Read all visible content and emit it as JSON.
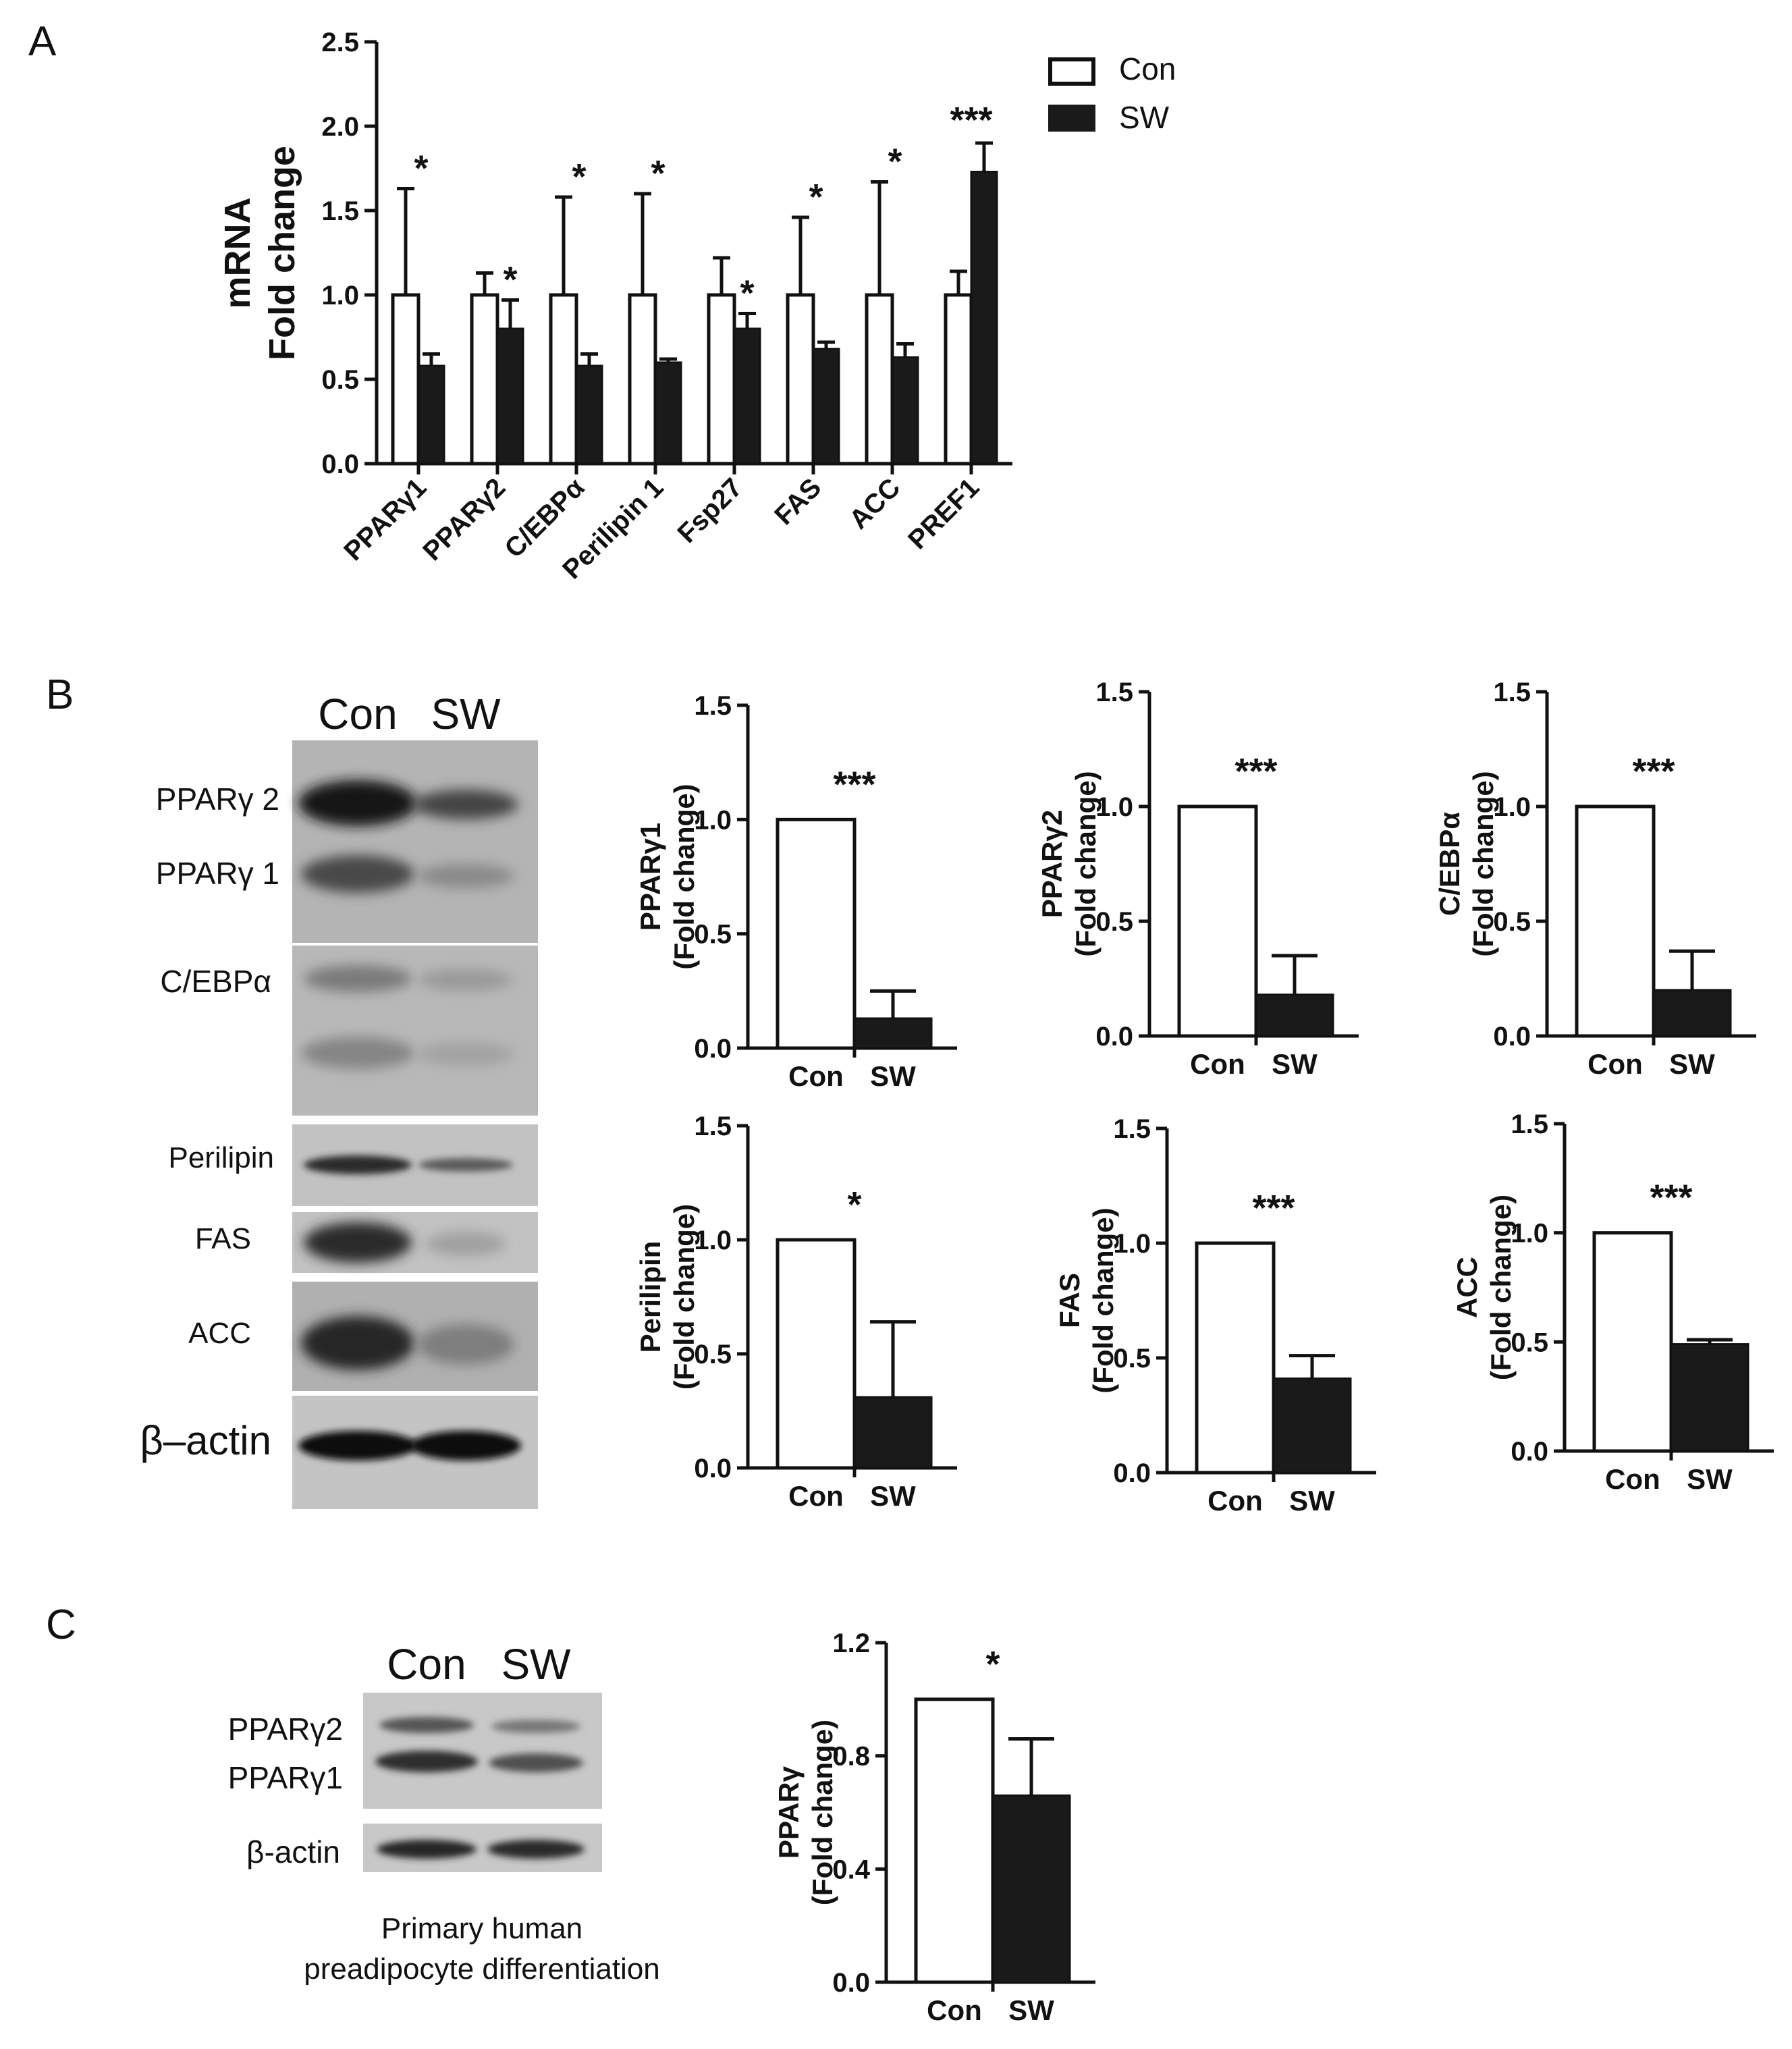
{
  "panel_labels": [
    "A",
    "B",
    "C"
  ],
  "colors": {
    "con": "#ffffff",
    "sw": "#1a1a1a",
    "axis": "#111111"
  },
  "chart_data": [
    {
      "id": "A",
      "type": "bar",
      "ylabel_lines": [
        "mRNA",
        "Fold change"
      ],
      "ylim": [
        0,
        2.5
      ],
      "yticks": [
        "0.0",
        "0.5",
        "1.0",
        "1.5",
        "2.0",
        "2.5"
      ],
      "categories": [
        "PPARγ1",
        "PPARγ2",
        "C/EBPα",
        "Perilipin 1",
        "Fsp27",
        "FAS",
        "ACC",
        "PREF1"
      ],
      "series": [
        {
          "name": "Con",
          "values": [
            1.0,
            1.0,
            1.0,
            1.0,
            1.0,
            1.0,
            1.0,
            1.0
          ],
          "errors": [
            0.63,
            0.13,
            0.58,
            0.6,
            0.22,
            0.46,
            0.67,
            0.14
          ]
        },
        {
          "name": "SW",
          "values": [
            0.58,
            0.8,
            0.58,
            0.6,
            0.8,
            0.68,
            0.63,
            1.73
          ],
          "errors": [
            0.07,
            0.17,
            0.07,
            0.02,
            0.09,
            0.04,
            0.08,
            0.17
          ]
        }
      ],
      "significance": [
        "*",
        "*",
        "*",
        "*",
        "*",
        "*",
        "*",
        "***"
      ],
      "legend": [
        "Con",
        "SW"
      ]
    },
    {
      "id": "B1",
      "type": "bar",
      "ylabel_lines": [
        "PPARγ1",
        "(Fold change)"
      ],
      "ylim": [
        0,
        1.5
      ],
      "yticks": [
        "0.0",
        "0.5",
        "1.0",
        "1.5"
      ],
      "categories": [
        "Con",
        "SW"
      ],
      "values": [
        1.0,
        0.13
      ],
      "errors": [
        0,
        0.12
      ],
      "significance": "***"
    },
    {
      "id": "B2",
      "type": "bar",
      "ylabel_lines": [
        "PPARγ2",
        "(Fold change)"
      ],
      "ylim": [
        0,
        1.5
      ],
      "yticks": [
        "0.0",
        "0.5",
        "1.0",
        "1.5"
      ],
      "categories": [
        "Con",
        "SW"
      ],
      "values": [
        1.0,
        0.18
      ],
      "errors": [
        0,
        0.17
      ],
      "significance": "***"
    },
    {
      "id": "B3",
      "type": "bar",
      "ylabel_lines": [
        "C/EBPα",
        "(Fold change)"
      ],
      "ylim": [
        0,
        1.5
      ],
      "yticks": [
        "0.0",
        "0.5",
        "1.0",
        "1.5"
      ],
      "categories": [
        "Con",
        "SW"
      ],
      "values": [
        1.0,
        0.2
      ],
      "errors": [
        0,
        0.17
      ],
      "significance": "***"
    },
    {
      "id": "B4",
      "type": "bar",
      "ylabel_lines": [
        "Perilipin",
        "(Fold change)"
      ],
      "ylim": [
        0,
        1.5
      ],
      "yticks": [
        "0.0",
        "0.5",
        "1.0",
        "1.5"
      ],
      "categories": [
        "Con",
        "SW"
      ],
      "values": [
        1.0,
        0.31
      ],
      "errors": [
        0,
        0.33
      ],
      "significance": "*"
    },
    {
      "id": "B5",
      "type": "bar",
      "ylabel_lines": [
        "FAS",
        "(Fold change)"
      ],
      "ylim": [
        0,
        1.5
      ],
      "yticks": [
        "0.0",
        "0.5",
        "1.0",
        "1.5"
      ],
      "categories": [
        "Con",
        "SW"
      ],
      "values": [
        1.0,
        0.41
      ],
      "errors": [
        0,
        0.1
      ],
      "significance": "***"
    },
    {
      "id": "B6",
      "type": "bar",
      "ylabel_lines": [
        "ACC",
        "(Fold change)"
      ],
      "ylim": [
        0,
        1.5
      ],
      "yticks": [
        "0.0",
        "0.5",
        "1.0",
        "1.5"
      ],
      "categories": [
        "Con",
        "SW"
      ],
      "values": [
        1.0,
        0.49
      ],
      "errors": [
        0,
        0.02
      ],
      "significance": "***"
    },
    {
      "id": "C1",
      "type": "bar",
      "ylabel_lines": [
        "PPARγ",
        "(Fold change)"
      ],
      "ylim": [
        0,
        1.2
      ],
      "yticks": [
        "0.0",
        "0.4",
        "0.8",
        "1.2"
      ],
      "categories": [
        "Con",
        "SW"
      ],
      "values": [
        1.0,
        0.66
      ],
      "errors": [
        0,
        0.2
      ],
      "significance": "*"
    }
  ],
  "blot_b": {
    "header": [
      "Con",
      "SW"
    ],
    "labels": [
      "PPARγ 2",
      "PPARγ 1",
      "C/EBPα",
      "Perilipin",
      "FAS",
      "ACC",
      "β–actin"
    ]
  },
  "blot_c": {
    "header": [
      "Con",
      "SW"
    ],
    "labels": [
      "PPARγ2",
      "PPARγ1",
      "β-actin"
    ],
    "caption_lines": [
      "Primary human",
      "preadipocyte differentiation"
    ]
  }
}
